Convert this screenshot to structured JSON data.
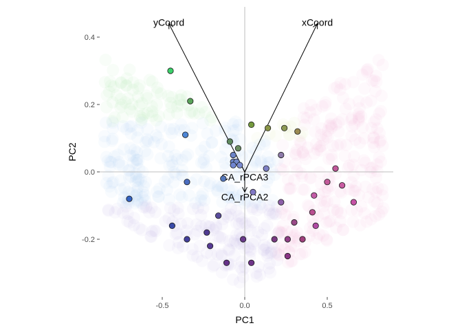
{
  "chart_data": {
    "type": "scatter",
    "title": "",
    "xlabel": "PC1",
    "ylabel": "PC2",
    "xlim": [
      -0.9,
      0.9
    ],
    "ylim": [
      -0.38,
      0.48
    ],
    "x_ticks": [
      -0.5,
      0.0,
      0.5
    ],
    "x_tick_labels": [
      "-0.5",
      "0.0",
      "0.5"
    ],
    "y_ticks": [
      -0.2,
      0.0,
      0.2,
      0.4
    ],
    "y_tick_labels": [
      "-0.2",
      "0.0",
      "0.2",
      "0.4"
    ],
    "grid": false,
    "zero_lines": true,
    "points": [
      {
        "x": -0.45,
        "y": 0.3,
        "color": "#3bd16a"
      },
      {
        "x": -0.33,
        "y": 0.21,
        "color": "#5aa35a"
      },
      {
        "x": -0.36,
        "y": 0.11,
        "color": "#4d86d6"
      },
      {
        "x": -0.09,
        "y": 0.09,
        "color": "#5f8a5f"
      },
      {
        "x": -0.04,
        "y": 0.07,
        "color": "#6a8c60"
      },
      {
        "x": -0.07,
        "y": 0.05,
        "color": "#6b84c8"
      },
      {
        "x": -0.07,
        "y": 0.03,
        "color": "#6b84c8"
      },
      {
        "x": -0.05,
        "y": 0.03,
        "color": "#7087c9"
      },
      {
        "x": -0.03,
        "y": 0.02,
        "color": "#7a8ad0"
      },
      {
        "x": -0.07,
        "y": 0.02,
        "color": "#7086d2"
      },
      {
        "x": -0.13,
        "y": -0.02,
        "color": "#5577bb"
      },
      {
        "x": -0.35,
        "y": -0.03,
        "color": "#4c6ec0"
      },
      {
        "x": -0.7,
        "y": -0.08,
        "color": "#3563c2"
      },
      {
        "x": 0.04,
        "y": 0.14,
        "color": "#759a3e"
      },
      {
        "x": 0.14,
        "y": 0.13,
        "color": "#8a9648"
      },
      {
        "x": 0.24,
        "y": 0.13,
        "color": "#8d9a55"
      },
      {
        "x": 0.32,
        "y": 0.12,
        "color": "#9a8a52"
      },
      {
        "x": 0.22,
        "y": 0.05,
        "color": "#8d7aa9"
      },
      {
        "x": 0.13,
        "y": 0.01,
        "color": "#7d80c4"
      },
      {
        "x": 0.05,
        "y": -0.06,
        "color": "#8178c4"
      },
      {
        "x": 0.22,
        "y": -0.09,
        "color": "#8d5fa8"
      },
      {
        "x": 0.55,
        "y": 0.01,
        "color": "#c0589a"
      },
      {
        "x": 0.5,
        "y": -0.03,
        "color": "#c25a9a"
      },
      {
        "x": 0.59,
        "y": -0.04,
        "color": "#c95ca2"
      },
      {
        "x": 0.42,
        "y": -0.07,
        "color": "#c35ca7"
      },
      {
        "x": 0.66,
        "y": -0.09,
        "color": "#c752a6"
      },
      {
        "x": 0.41,
        "y": -0.12,
        "color": "#b84f90"
      },
      {
        "x": 0.3,
        "y": -0.15,
        "color": "#9a4a88"
      },
      {
        "x": 0.43,
        "y": -0.16,
        "color": "#b04aa3"
      },
      {
        "x": 0.35,
        "y": -0.2,
        "color": "#a0407e"
      },
      {
        "x": 0.26,
        "y": -0.2,
        "color": "#903f86"
      },
      {
        "x": 0.18,
        "y": -0.2,
        "color": "#7a3a82"
      },
      {
        "x": 0.26,
        "y": -0.25,
        "color": "#8a3585"
      },
      {
        "x": -0.16,
        "y": -0.13,
        "color": "#5a4d9c"
      },
      {
        "x": -0.44,
        "y": -0.16,
        "color": "#3a4aa8"
      },
      {
        "x": -0.23,
        "y": -0.18,
        "color": "#503b92"
      },
      {
        "x": -0.35,
        "y": -0.2,
        "color": "#44409c"
      },
      {
        "x": -0.21,
        "y": -0.22,
        "color": "#573a94"
      },
      {
        "x": -0.01,
        "y": -0.2,
        "color": "#6a3a8c"
      },
      {
        "x": -0.11,
        "y": -0.27,
        "color": "#66328a"
      },
      {
        "x": 0.04,
        "y": -0.27,
        "color": "#6e3388"
      }
    ],
    "arrows": [
      {
        "label": "yCoord",
        "x": -0.46,
        "y": 0.44
      },
      {
        "label": "xCoord",
        "x": 0.44,
        "y": 0.44
      },
      {
        "label": "CA_rPCA3",
        "x": 0.0,
        "y": -0.001
      },
      {
        "label": "CA_rPCA2",
        "x": 0.0,
        "y": -0.06
      }
    ],
    "background": {
      "note_colors": {
        "green": "#9fe09f",
        "blue": "#9fc0ea",
        "pink": "#eba8cf",
        "purple": "#b8aee0",
        "olive": "#cfe0a0"
      }
    }
  }
}
